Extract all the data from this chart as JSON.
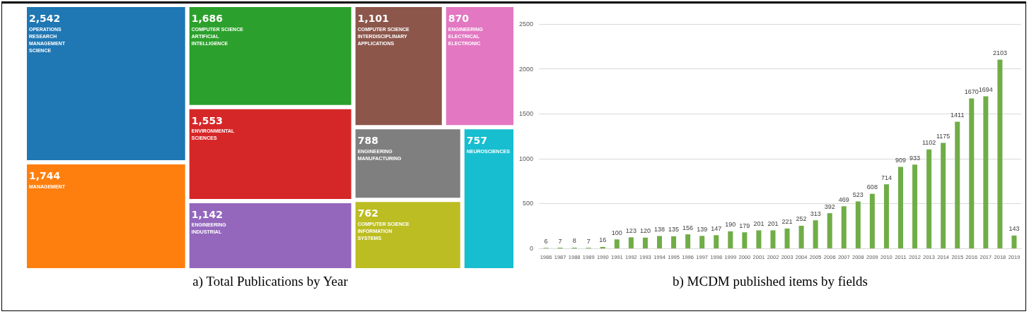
{
  "chart_data": [
    {
      "type": "other",
      "title": "a) Total Publications by Year",
      "categories": [
        "OPERATIONS RESEARCH MANAGEMENT SCIENCE",
        "MANAGEMENT",
        "COMPUTER SCIENCE ARTIFICIAL INTELLIGENCE",
        "ENVIRONMENTAL SCIENCES",
        "ENGINEERING INDUSTRIAL",
        "COMPUTER SCIENCE INTERDISCIPLINARY APPLICATIONS",
        "ENGINEERING ELECTRICAL ELECTRONIC",
        "ENGINEERING MANUFACTURING",
        "COMPUTER SCIENCE INFORMATION SYSTEMS",
        "NEUROSCIENCES"
      ],
      "values": [
        2542,
        1744,
        1686,
        1553,
        1142,
        1101,
        870,
        788,
        762,
        757
      ],
      "value_labels": [
        "2,542",
        "1,744",
        "1,686",
        "1,553",
        "1,142",
        "1,101",
        "870",
        "788",
        "762",
        "757"
      ],
      "colors": [
        "#1f77b4",
        "#ff7f0e",
        "#2ca02c",
        "#d62728",
        "#9467bd",
        "#8c564b",
        "#e377c2",
        "#7f7f7f",
        "#bcbd22",
        "#17becf"
      ]
    },
    {
      "type": "bar",
      "title": "b) MCDM published items by fields",
      "categories": [
        "1986",
        "1987",
        "1988",
        "1989",
        "1990",
        "1991",
        "1992",
        "1993",
        "1994",
        "1995",
        "1996",
        "1997",
        "1998",
        "1999",
        "2000",
        "2001",
        "2002",
        "2003",
        "2004",
        "2005",
        "2006",
        "2007",
        "2008",
        "2009",
        "2010",
        "2011",
        "2012",
        "2013",
        "2014",
        "2015",
        "2016",
        "2017",
        "2018",
        "2019"
      ],
      "values": [
        6,
        7,
        8,
        7,
        16,
        100,
        123,
        120,
        138,
        135,
        156,
        139,
        147,
        190,
        179,
        201,
        201,
        221,
        252,
        313,
        392,
        469,
        523,
        608,
        714,
        909,
        933,
        1102,
        1175,
        1411,
        1670,
        1694,
        2103,
        143
      ],
      "color": "#70ad47",
      "ylim": [
        0,
        2500
      ],
      "yticks": [
        0,
        500,
        1000,
        1500,
        2000,
        2500
      ],
      "grid": "y",
      "data_labels": true
    }
  ]
}
